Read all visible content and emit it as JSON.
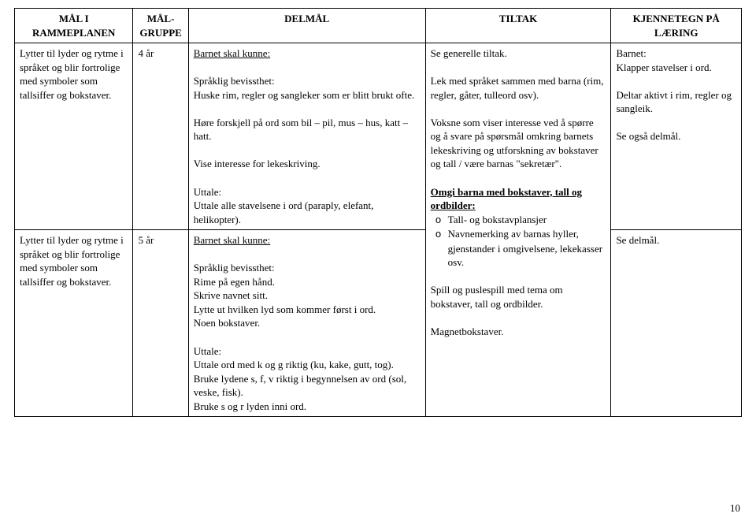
{
  "headers": {
    "h1": "MÅL I RAMMEPLANEN",
    "h2": "MÅL-GRUPPE",
    "h3": "DELMÅL",
    "h4": "TILTAK",
    "h5": "KJENNETEGN PÅ LÆRING"
  },
  "row1": {
    "goal": "Lytter til lyder og rytme i språket og blir fortrolige med symboler som tallsiffer og bokstaver.",
    "group": "4 år",
    "delmal": {
      "head": "Barnet skal kunne:",
      "s1t": "Språklig bevissthet:",
      "s1a": "Huske rim, regler og sangleker som er blitt brukt ofte.",
      "s1b": "Høre forskjell på ord som bil – pil, mus – hus, katt – hatt.",
      "s1c": "Vise interesse for lekeskriving.",
      "s2t": "Uttale:",
      "s2a": "Uttale alle stavelsene i ord (paraply, elefant, helikopter)."
    },
    "kj": {
      "a": "Barnet:",
      "b": "Klapper stavelser i ord.",
      "c": "Deltar aktivt i rim, regler og sangleik.",
      "d": "Se også delmål."
    }
  },
  "row2": {
    "goal": "Lytter til lyder og rytme i språket og blir fortrolige med symboler som tallsiffer og bokstaver.",
    "group": "5 år",
    "delmal": {
      "head": "Barnet skal kunne:",
      "s1t": "Språklig bevissthet:",
      "s1a": "Rime på egen hånd.",
      "s1b": "Skrive navnet sitt.",
      "s1c": "Lytte ut hvilken lyd som kommer først i ord.",
      "s1d": "Noen bokstaver.",
      "s2t": "Uttale:",
      "s2a": "Uttale ord med k og g riktig (ku, kake, gutt, tog).",
      "s2b": "Bruke lydene s, f, v riktig i begynnelsen av ord (sol, veske, fisk).",
      "s2c": "Bruke s og r lyden inni ord."
    },
    "kj": "Se delmål."
  },
  "tiltak": {
    "t1": "Se generelle tiltak.",
    "t2": "Lek med språket sammen med barna (rim, regler, gåter, tulleord osv).",
    "t3": "Voksne som viser interesse ved å spørre og å svare på spørsmål omkring barnets lekeskriving og utforskning av bokstaver og tall / være barnas \"sekretær\".",
    "t4t": "Omgi barna med bokstaver, tall og ordbilder:",
    "t4a": "Tall- og bokstavplansjer",
    "t4b": "Navnemerking av barnas hyller, gjenstander i omgivelsene, lekekasser osv.",
    "t5": "Spill og puslespill med tema om bokstaver, tall og ordbilder.",
    "t6": "Magnetbokstaver."
  },
  "page": "10"
}
